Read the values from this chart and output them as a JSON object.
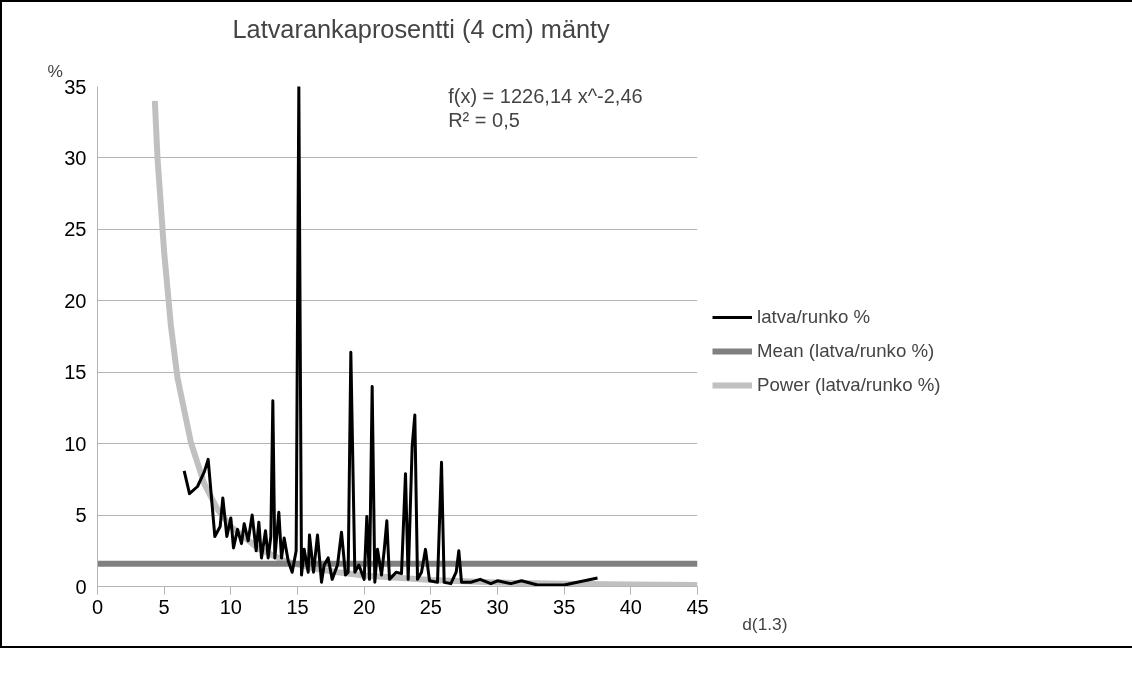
{
  "chart_data": {
    "type": "line",
    "title": "Latvarankaprosentti (4 cm) mänty",
    "xlabel": "d(1.3)",
    "ylabel": "%",
    "annotations": [
      "f(x) = 1226,14 x^-2,46",
      "R² = 0,5"
    ],
    "xlim": [
      0,
      45
    ],
    "xticks": [
      0,
      5,
      10,
      15,
      20,
      25,
      30,
      35,
      40,
      45
    ],
    "ylim": [
      0,
      35
    ],
    "yticks": [
      0,
      5,
      10,
      15,
      20,
      25,
      30,
      35
    ],
    "grid": "y",
    "legend": "right",
    "marker": "none",
    "line_style": "solid",
    "series": [
      {
        "name": "latva/runko %",
        "color": "#000000",
        "x": [
          6.5,
          6.9,
          7.5,
          8.0,
          8.3,
          8.8,
          9.2,
          9.4,
          9.7,
          10.0,
          10.2,
          10.5,
          10.8,
          11.0,
          11.3,
          11.6,
          11.9,
          12.1,
          12.3,
          12.6,
          12.8,
          13.0,
          13.15,
          13.3,
          13.6,
          13.8,
          14.0,
          14.3,
          14.6,
          14.9,
          15.1,
          15.3,
          15.5,
          15.8,
          15.9,
          16.2,
          16.5,
          16.8,
          17.0,
          17.3,
          17.6,
          18.0,
          18.3,
          18.6,
          18.8,
          19.0,
          19.3,
          19.6,
          20.0,
          20.2,
          20.4,
          20.6,
          20.8,
          21.0,
          21.3,
          21.5,
          21.7,
          21.9,
          22.4,
          22.8,
          23.1,
          23.3,
          23.6,
          23.8,
          24.0,
          24.3,
          24.6,
          24.9,
          25.5,
          25.8,
          26.0,
          26.5,
          26.9,
          27.1,
          27.3,
          28.0,
          28.7,
          29.5,
          30.0,
          31.0,
          31.8,
          33.0,
          35.0,
          37.5
        ],
        "values": [
          8.1,
          6.5,
          7.0,
          8.0,
          8.9,
          3.5,
          4.2,
          6.2,
          3.5,
          4.8,
          2.7,
          4.0,
          3.0,
          4.4,
          3.2,
          5.0,
          2.5,
          4.5,
          2.0,
          3.9,
          2.0,
          3.5,
          13.0,
          2.0,
          5.2,
          2.0,
          3.4,
          1.8,
          1.0,
          2.5,
          35,
          0.8,
          2.6,
          1.0,
          3.6,
          1.0,
          3.6,
          0.3,
          1.5,
          2.0,
          0.5,
          1.5,
          3.8,
          0.8,
          1.0,
          16.4,
          1.0,
          1.5,
          0.5,
          4.9,
          0.5,
          14.0,
          0.3,
          2.6,
          0.8,
          2.5,
          4.6,
          0.5,
          1.0,
          0.9,
          7.9,
          0.5,
          9.8,
          12.0,
          0.5,
          1.0,
          2.6,
          0.4,
          0.3,
          8.7,
          0.3,
          0.2,
          1.0,
          2.5,
          0.3,
          0.3,
          0.5,
          0.2,
          0.4,
          0.2,
          0.4,
          0.1,
          0.1,
          0.6
        ]
      },
      {
        "name": "Mean (latva/runko %)",
        "color": "#808080",
        "x": [
          0,
          45
        ],
        "values": [
          1.6,
          1.6
        ]
      },
      {
        "name": "Power (latva/runko %)",
        "color": "#c0c0c0",
        "x": [
          4.3,
          4.5,
          5,
          5.5,
          6,
          7,
          8,
          9,
          10,
          12,
          14,
          16,
          18,
          20,
          25,
          30,
          35,
          40,
          45
        ],
        "values": [
          34,
          30,
          23.4,
          18.3,
          14.6,
          10.1,
          7.2,
          5.4,
          4.2,
          2.7,
          1.8,
          1.3,
          1.0,
          0.77,
          0.45,
          0.28,
          0.19,
          0.14,
          0.1
        ]
      }
    ]
  }
}
